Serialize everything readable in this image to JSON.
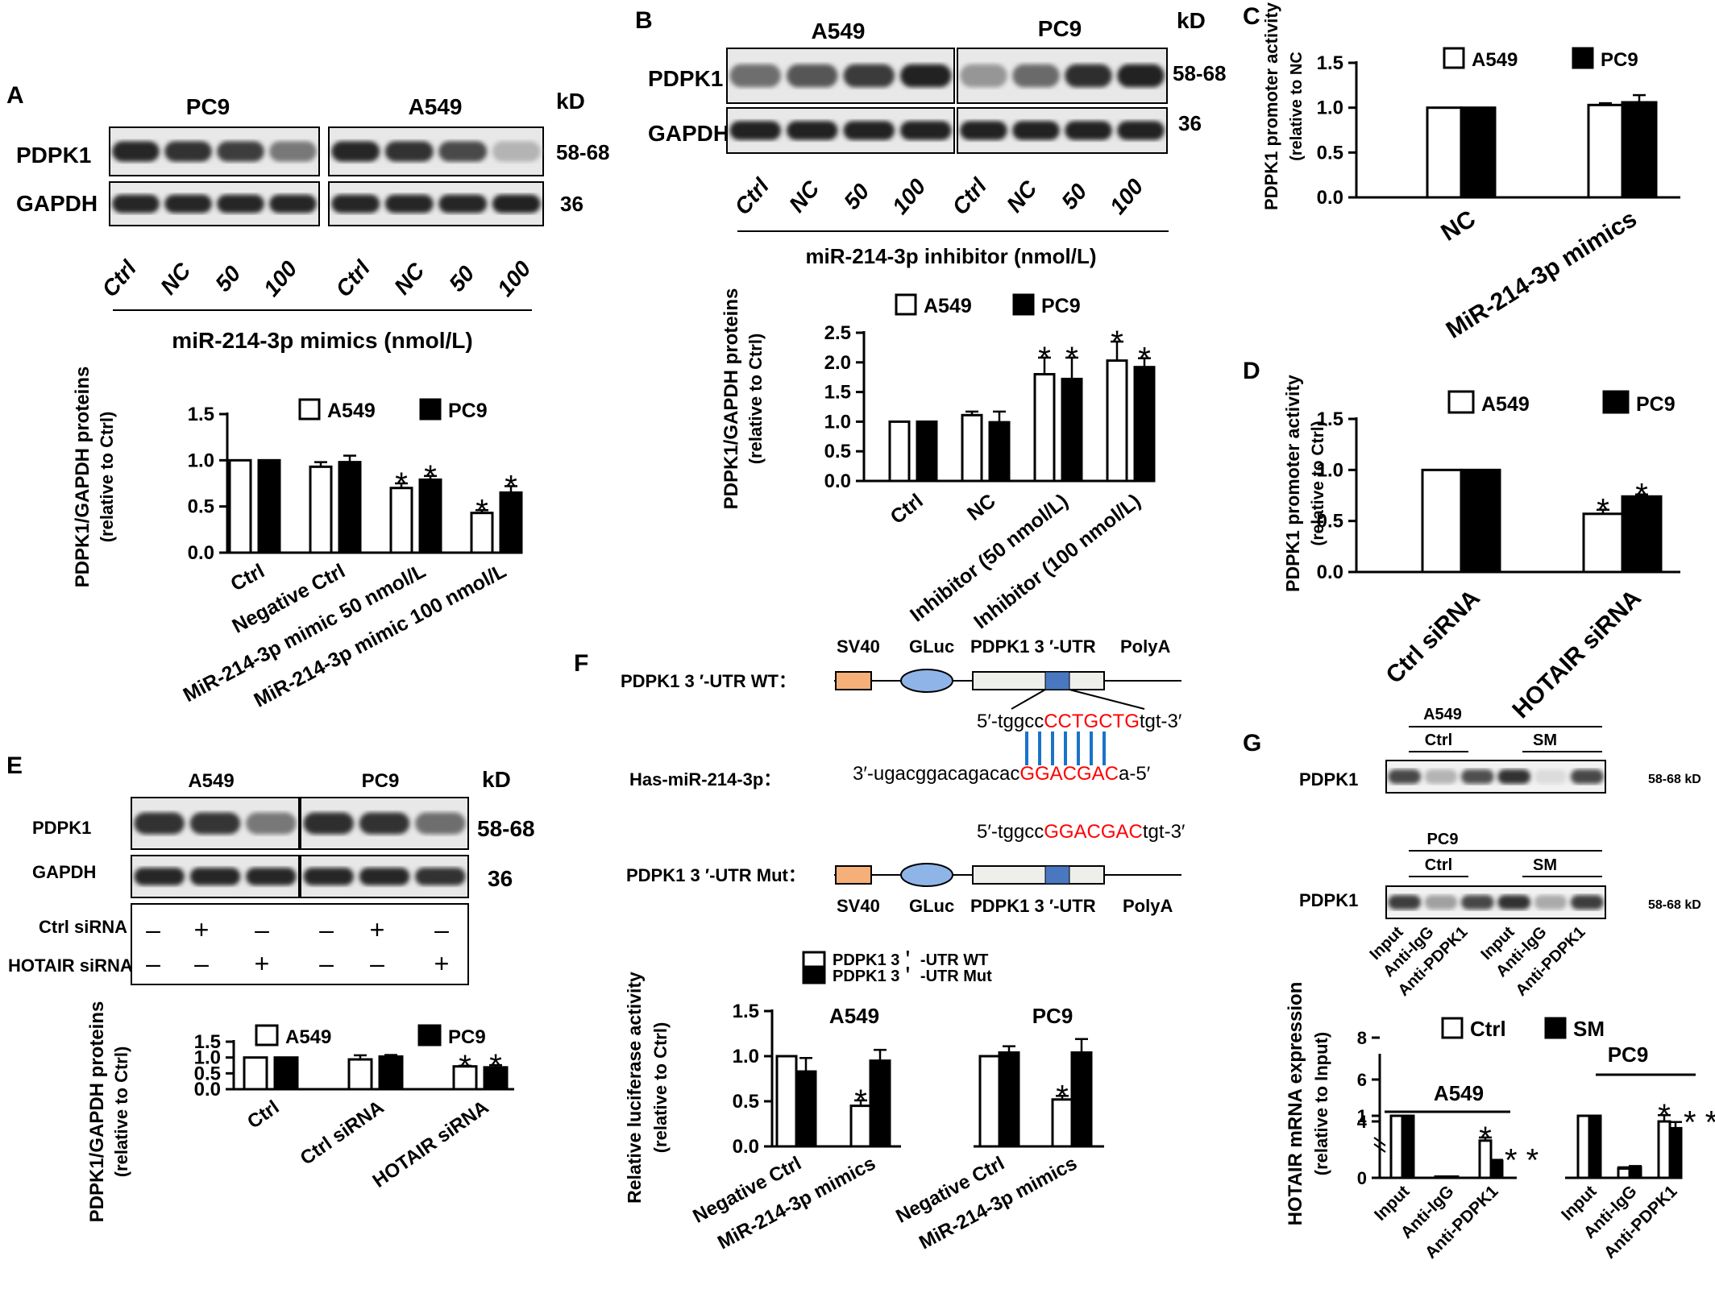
{
  "figure": {
    "panels": {
      "A": {
        "letter": "A",
        "blot": {
          "groups": [
            "PC9",
            "A549"
          ],
          "rows": [
            "PDPK1",
            "GAPDH"
          ],
          "kd_header": "kD",
          "kd": [
            "58-68",
            "36"
          ],
          "lanes": [
            "Ctrl",
            "NC",
            "50",
            "100",
            "Ctrl",
            "NC",
            "50",
            "100"
          ],
          "condition": "miR-214-3p mimics (nmol/L)"
        }
      },
      "B": {
        "letter": "B",
        "blot": {
          "groups": [
            "A549",
            "PC9"
          ],
          "rows": [
            "PDPK1",
            "GAPDH"
          ],
          "kd_header": "kD",
          "kd": [
            "58-68",
            "36"
          ],
          "lanes": [
            "Ctrl",
            "NC",
            "50",
            "100",
            "Ctrl",
            "NC",
            "50",
            "100"
          ],
          "condition": "miR-214-3p inhibitor (nmol/L)"
        }
      },
      "C": {
        "letter": "C"
      },
      "D": {
        "letter": "D"
      },
      "E": {
        "letter": "E",
        "blot": {
          "groups": [
            "A549",
            "PC9"
          ],
          "rows": [
            "PDPK1",
            "GAPDH"
          ],
          "kd_header": "kD",
          "kd": [
            "58-68",
            "36"
          ],
          "treat_rows": [
            "Ctrl siRNA",
            "HOTAIR siRNA"
          ],
          "ctrl_signs": [
            "–",
            "+",
            "–",
            "–",
            "+",
            "–"
          ],
          "hotair_signs": [
            "–",
            "–",
            "+",
            "–",
            "–",
            "+"
          ]
        }
      },
      "F": {
        "letter": "F",
        "construct_wt": "PDPK1 3 ′-UTR WT：",
        "construct_mut": "PDPK1 3 ′-UTR Mut：",
        "mirna_label": "Has-miR-214-3p：",
        "elements": [
          "SV40",
          "GLuc",
          "PDPK1 3 ′-UTR",
          "PolyA"
        ],
        "wt_seq": {
          "prefix": "5′-tggcc",
          "site": "CCTGCTG",
          "suffix": "tgt-3′"
        },
        "mir_seq": {
          "prefix": "3′-ugacggacagacac",
          "site": "GGACGAC",
          "suffix": "a-5′"
        },
        "mut_seq": {
          "prefix": "5′-tggcc",
          "site": "GGACGAC",
          "suffix": "tgt-3′"
        }
      },
      "G": {
        "letter": "G",
        "blot": {
          "groups": [
            "A549",
            "PC9"
          ],
          "subgroups": [
            "Ctrl",
            "SM"
          ],
          "row": "PDPK1",
          "kd": "58-68 kD",
          "lanes": [
            "Input",
            "Anti-IgG",
            "Anti-PDPK1",
            "Input",
            "Anti-IgG",
            "Anti-PDPK1"
          ]
        }
      }
    },
    "colors": {
      "red_sequence": "#ff0000",
      "blue_pairing": "#1a73c8",
      "sv40_box": "#f5b07a",
      "gluc_oval": "#8fb5e8",
      "utr_box": "#eeeeea",
      "site_box": "#4a78c0",
      "bar_fill_a": "#ffffff",
      "bar_fill_b": "#000000"
    }
  },
  "chart_data": [
    {
      "id": "A",
      "type": "bar",
      "title": "",
      "xlabel": "",
      "ylabel": "PDPK1/GAPDH proteins",
      "ylabel2": "(relative to Ctrl)",
      "ylim": [
        0,
        1.5
      ],
      "yticks": [
        "0.0",
        "0.5",
        "1.0",
        "1.5"
      ],
      "categories": [
        "Ctrl",
        "Negative Ctrl",
        "MiR-214-3p mimic 50 nmol/L",
        "MiR-214-3p mimic 100 nmol/L"
      ],
      "series": [
        {
          "name": "A549",
          "values": [
            1.0,
            0.93,
            0.7,
            0.43
          ],
          "errors": [
            0,
            0.05,
            0.05,
            0.03
          ],
          "stars": [
            "",
            "",
            "*",
            "*"
          ]
        },
        {
          "name": "PC9",
          "values": [
            1.0,
            0.98,
            0.79,
            0.65
          ],
          "errors": [
            0,
            0.07,
            0.04,
            0.07
          ],
          "stars": [
            "",
            "",
            "*",
            "*"
          ]
        }
      ],
      "legend": "top"
    },
    {
      "id": "B",
      "type": "bar",
      "title": "",
      "xlabel": "",
      "ylabel": "PDPK1/GAPDH proteins",
      "ylabel2": "(relative to Ctrl)",
      "ylim": [
        0,
        2.5
      ],
      "yticks": [
        "0.0",
        "0.5",
        "1.0",
        "1.5",
        "2.0",
        "2.5"
      ],
      "categories": [
        "Ctrl",
        "NC",
        "Inhibitor (50 nmol/L)",
        "Inhibitor (100 nmol/L)"
      ],
      "series": [
        {
          "name": "A549",
          "values": [
            1.0,
            1.11,
            1.8,
            2.03
          ],
          "errors": [
            0,
            0.06,
            0.28,
            0.32
          ],
          "stars": [
            "",
            "",
            "*",
            "*"
          ]
        },
        {
          "name": "PC9",
          "values": [
            1.0,
            0.99,
            1.72,
            1.92
          ],
          "errors": [
            0,
            0.18,
            0.36,
            0.15
          ],
          "stars": [
            "",
            "",
            "*",
            "*"
          ]
        }
      ],
      "legend": "top"
    },
    {
      "id": "C",
      "type": "bar",
      "title": "",
      "xlabel": "",
      "ylabel": "PDPK1 promoter activity",
      "ylabel2": "(relative to NC",
      "ylim": [
        0,
        1.5
      ],
      "yticks": [
        "0.0",
        "0.5",
        "1.0",
        "1.5"
      ],
      "categories": [
        "NC",
        "MiR-214-3p mimics"
      ],
      "series": [
        {
          "name": "A549",
          "values": [
            1.0,
            1.03
          ],
          "errors": [
            0,
            0.02
          ],
          "stars": [
            "",
            ""
          ]
        },
        {
          "name": "PC9",
          "values": [
            1.0,
            1.06
          ],
          "errors": [
            0,
            0.08
          ],
          "stars": [
            "",
            ""
          ]
        }
      ],
      "legend": "top"
    },
    {
      "id": "D",
      "type": "bar",
      "title": "",
      "xlabel": "",
      "ylabel": "PDPK1 promoter activity",
      "ylabel2": "(relative to Ctrl)",
      "ylim": [
        0,
        1.5
      ],
      "yticks": [
        "0.0",
        "0.5",
        "1.0",
        "1.5"
      ],
      "categories": [
        "Ctrl siRNA",
        "HOTAIR siRNA"
      ],
      "series": [
        {
          "name": "A549",
          "values": [
            1.0,
            0.57
          ],
          "errors": [
            0,
            0.04
          ],
          "stars": [
            "",
            "*"
          ]
        },
        {
          "name": "PC9",
          "values": [
            1.0,
            0.74
          ],
          "errors": [
            0,
            0.02
          ],
          "stars": [
            "",
            "*"
          ]
        }
      ],
      "legend": "top"
    },
    {
      "id": "E",
      "type": "bar",
      "title": "",
      "xlabel": "",
      "ylabel": "PDPK1/GAPDH proteins",
      "ylabel2": "(relative to Ctrl)",
      "ylim": [
        0,
        1.5
      ],
      "yticks": [
        "0.0",
        "0.5",
        "1.0",
        "1.5"
      ],
      "categories": [
        "Ctrl",
        "Ctrl siRNA",
        "HOTAIR siRNA"
      ],
      "series": [
        {
          "name": "A549",
          "values": [
            1.0,
            0.94,
            0.72
          ],
          "errors": [
            0,
            0.13,
            0.02
          ],
          "stars": [
            "",
            "",
            "*"
          ]
        },
        {
          "name": "PC9",
          "values": [
            1.0,
            1.03,
            0.69
          ],
          "errors": [
            0,
            0.05,
            0.07
          ],
          "stars": [
            "",
            "",
            "*"
          ]
        }
      ],
      "legend": "top"
    },
    {
      "id": "F",
      "type": "bar",
      "title": "",
      "xlabel": "",
      "ylabel": "Relative luciferase activity",
      "ylabel2": "(relative to Ctrl)",
      "ylim": [
        0,
        1.5
      ],
      "yticks": [
        "0.0",
        "0.5",
        "1.0",
        "1.5"
      ],
      "group_labels": [
        "A549",
        "PC9"
      ],
      "categories": [
        "Negative Ctrl",
        "MiR-214-3p mimics",
        "Negative Ctrl",
        "MiR-214-3p mimics"
      ],
      "series": [
        {
          "name": "PDPK1 3＇ -UTR WT",
          "values": [
            1.0,
            0.45,
            1.0,
            0.52
          ],
          "errors": [
            0,
            0.06,
            0,
            0.04
          ],
          "stars": [
            "",
            "*",
            "",
            "*"
          ]
        },
        {
          "name": "PDPK1 3＇ -UTR Mut",
          "values": [
            0.83,
            0.95,
            1.04,
            1.04
          ],
          "errors": [
            0.15,
            0.12,
            0.07,
            0.15
          ],
          "stars": [
            "",
            "",
            "",
            ""
          ]
        }
      ],
      "legend": "top"
    },
    {
      "id": "G",
      "type": "bar",
      "title": "",
      "xlabel": "",
      "ylabel": "HOTAIR mRNA expression",
      "ylabel2": "(relative to Input)",
      "yticks": [
        "0",
        "1",
        "4",
        "6",
        "8"
      ],
      "group_labels": [
        "A549",
        "PC9"
      ],
      "categories": [
        "Input",
        "Anti-IgG",
        "Anti-PDPK1",
        "Input",
        "Anti-IgG",
        "Anti-PDPK1"
      ],
      "series": [
        {
          "name": "Ctrl",
          "values": [
            1.0,
            0.02,
            0.6,
            1.0,
            0.15,
            4.0
          ],
          "errors": [
            0,
            0,
            0.05,
            0,
            0.02,
            0.3
          ],
          "stars": [
            "",
            "",
            "*",
            "",
            "",
            "*"
          ]
        },
        {
          "name": "SM",
          "values": [
            1.0,
            0.02,
            0.27,
            1.0,
            0.17,
            0.8
          ],
          "errors": [
            0,
            0,
            0.02,
            0,
            0.02,
            0.1
          ],
          "stars": [
            "",
            "",
            "* *",
            "",
            "",
            "* *"
          ]
        }
      ],
      "legend": "top"
    }
  ]
}
